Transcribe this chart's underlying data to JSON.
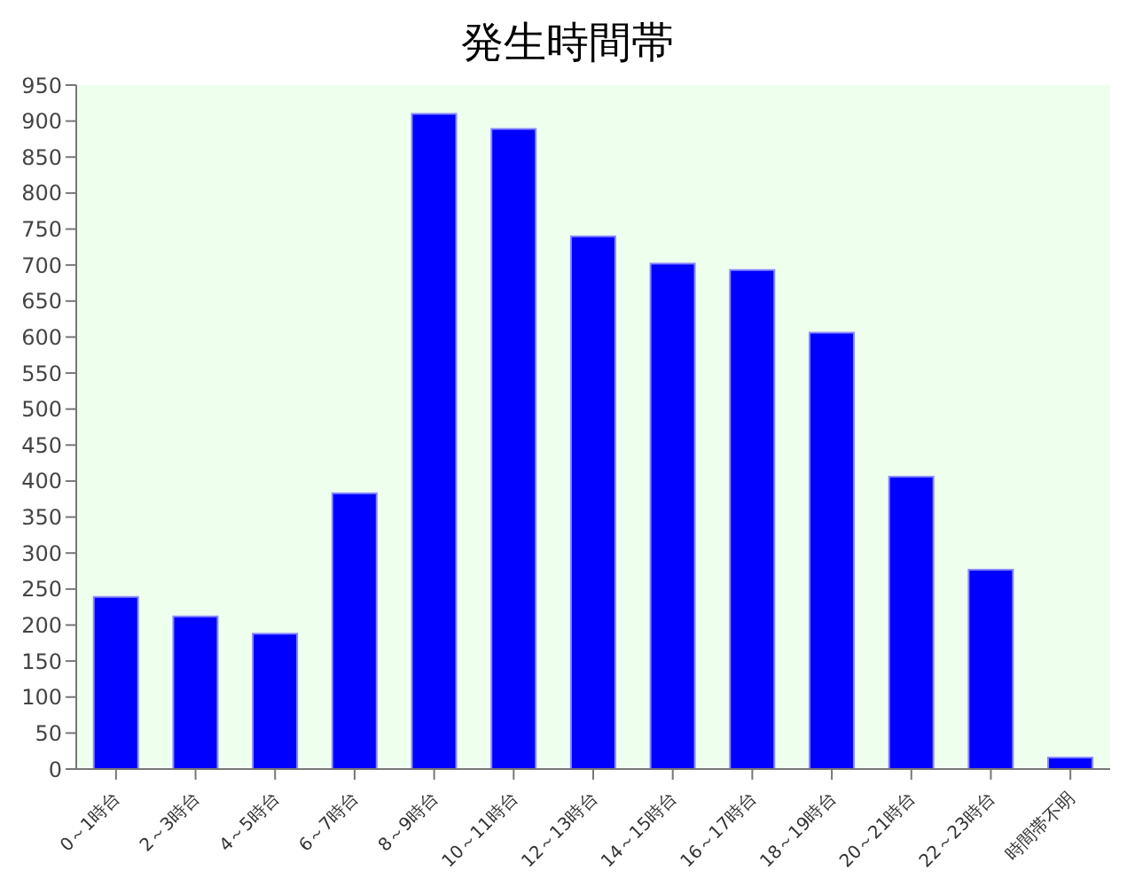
{
  "chart_data": {
    "type": "bar",
    "title": "発生時間帯",
    "categories": [
      "0～1時台",
      "2～3時台",
      "4～5時台",
      "6～7時台",
      "8～9時台",
      "10～11時台",
      "12～13時台",
      "14～15時台",
      "16～17時台",
      "18～19時台",
      "20～21時台",
      "22～23時台",
      "時間帯不明"
    ],
    "values": [
      239,
      212,
      188,
      383,
      910,
      889,
      740,
      702,
      693,
      606,
      406,
      277,
      16
    ],
    "color": "#0000ff",
    "ylim": [
      0,
      950
    ],
    "yticks": [
      0,
      50,
      100,
      150,
      200,
      250,
      300,
      350,
      400,
      450,
      500,
      550,
      600,
      650,
      700,
      750,
      800,
      850,
      900,
      950
    ],
    "legend": false
  }
}
